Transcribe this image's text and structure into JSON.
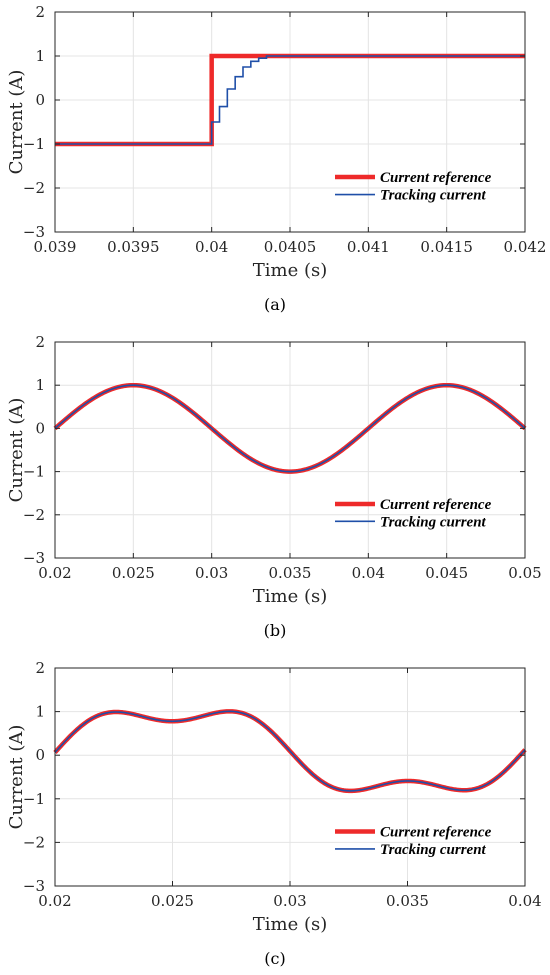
{
  "chart_data": [
    {
      "type": "line",
      "caption": "(a)",
      "xlabel": "Time (s)",
      "ylabel": "Current (A)",
      "xlim": [
        0.039,
        0.042
      ],
      "ylim": [
        -3,
        2
      ],
      "xticks": [
        "0.039",
        "0.0395",
        "0.04",
        "0.0405",
        "0.041",
        "0.0415",
        "0.042"
      ],
      "yticks": [
        "-3",
        "-2",
        "-1",
        "0",
        "1",
        "2"
      ],
      "grid": true,
      "legend": {
        "position": "bottom-right",
        "entries": [
          "Current reference",
          "Tracking current"
        ]
      },
      "series": [
        {
          "name": "Current reference",
          "color": "#ee2a2a",
          "x": [
            0.039,
            0.04,
            0.04,
            0.042
          ],
          "y": [
            -1,
            -1,
            1,
            1
          ]
        },
        {
          "name": "Tracking current",
          "color": "#1f4fa8",
          "x": [
            0.039,
            0.04,
            0.04,
            0.04005,
            0.04005,
            0.0401,
            0.0401,
            0.04015,
            0.04015,
            0.0402,
            0.0402,
            0.04025,
            0.04025,
            0.0403,
            0.0403,
            0.04035,
            0.04035,
            0.042
          ],
          "y": [
            -1,
            -1,
            -0.5,
            -0.5,
            -0.15,
            -0.15,
            0.25,
            0.25,
            0.53,
            0.53,
            0.75,
            0.75,
            0.88,
            0.88,
            0.95,
            0.95,
            1,
            1
          ]
        }
      ]
    },
    {
      "type": "line",
      "caption": "(b)",
      "xlabel": "Time (s)",
      "ylabel": "Current (A)",
      "xlim": [
        0.02,
        0.05
      ],
      "ylim": [
        -3,
        2
      ],
      "xticks": [
        "0.02",
        "0.025",
        "0.03",
        "0.035",
        "0.04",
        "0.045",
        "0.05"
      ],
      "yticks": [
        "-3",
        "-2",
        "-1",
        "0",
        "1",
        "2"
      ],
      "grid": true,
      "legend": {
        "position": "bottom-right",
        "entries": [
          "Current reference",
          "Tracking current"
        ]
      },
      "signal": {
        "form": "sine",
        "amplitude": 1,
        "frequency_hz": 50,
        "t_start": 0.02,
        "t_end": 0.05,
        "samples": 301
      },
      "series": [
        {
          "name": "Current reference",
          "color": "#ee2a2a"
        },
        {
          "name": "Tracking current",
          "color": "#1f4fa8"
        }
      ]
    },
    {
      "type": "line",
      "caption": "(c)",
      "xlabel": "Time (s)",
      "ylabel": "Current (A)",
      "xlim": [
        0.02,
        0.04
      ],
      "ylim": [
        -3,
        2
      ],
      "xticks": [
        "0.02",
        "0.025",
        "0.03",
        "0.035",
        "0.04"
      ],
      "yticks": [
        "-3",
        "-2",
        "-1",
        "0",
        "1",
        "2"
      ],
      "grid": true,
      "legend": {
        "position": "bottom-right",
        "entries": [
          "Current reference",
          "Tracking current"
        ]
      },
      "signal": {
        "form": "harmonic-sum",
        "harmonics": [
          [
            1,
            0.5
          ],
          [
            50,
            1.0
          ],
          [
            150,
            0.3
          ]
        ],
        "t_start": 0.02,
        "t_end": 0.04,
        "samples": 401
      },
      "series": [
        {
          "name": "Current reference",
          "color": "#ee2a2a"
        },
        {
          "name": "Tracking current",
          "color": "#1f4fa8"
        }
      ]
    }
  ]
}
